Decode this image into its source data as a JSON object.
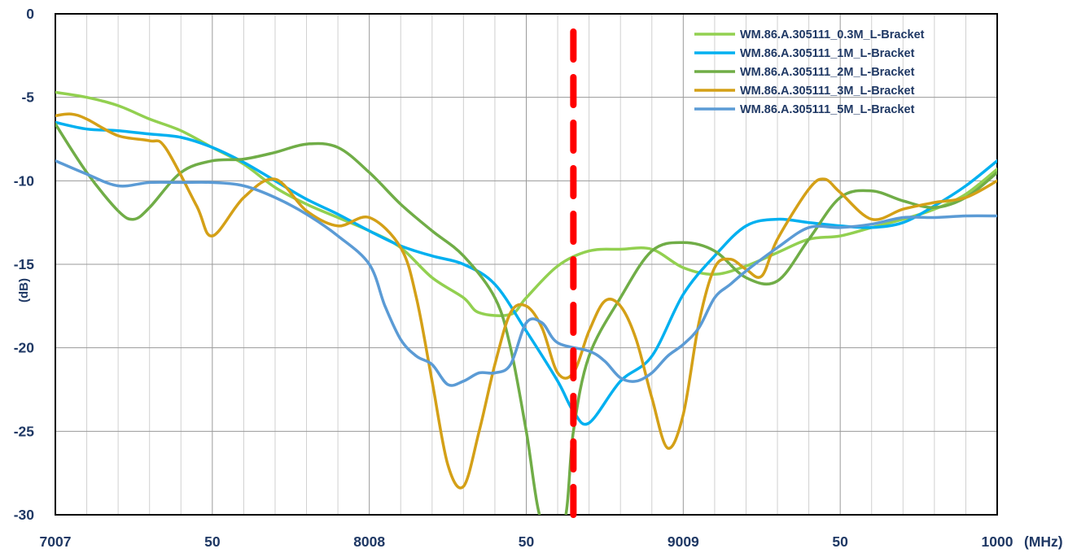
{
  "chart_data": {
    "type": "line",
    "title": "",
    "xlabel": "",
    "ylabel": "(dB)",
    "x_unit_label": "(MHz)",
    "x_tick_labels": [
      "7007",
      "50",
      "8008",
      "50",
      "9009",
      "50",
      "1000"
    ],
    "y_tick_labels": [
      "0",
      "-5",
      "-10",
      "-15",
      "-20",
      "-25",
      "-30"
    ],
    "ylim": [
      -30,
      0
    ],
    "xlim": [
      7000,
      10000
    ],
    "grid": true,
    "legend_position": "top-right",
    "marker_line": {
      "x": 8650,
      "style": "dashed",
      "color": "#ff0000"
    },
    "series": [
      {
        "name": "WM.86.A.305111_0.3M_L-Bracket",
        "color": "#92d050",
        "points": [
          [
            7000,
            -4.7
          ],
          [
            7100,
            -5.0
          ],
          [
            7200,
            -5.5
          ],
          [
            7300,
            -6.3
          ],
          [
            7400,
            -7.0
          ],
          [
            7500,
            -8.0
          ],
          [
            7600,
            -9.0
          ],
          [
            7700,
            -10.4
          ],
          [
            7800,
            -11.4
          ],
          [
            7900,
            -12.2
          ],
          [
            8000,
            -13.0
          ],
          [
            8100,
            -14.0
          ],
          [
            8200,
            -15.8
          ],
          [
            8300,
            -17.0
          ],
          [
            8350,
            -17.9
          ],
          [
            8450,
            -18.0
          ],
          [
            8500,
            -17.0
          ],
          [
            8600,
            -15.1
          ],
          [
            8700,
            -14.2
          ],
          [
            8800,
            -14.1
          ],
          [
            8900,
            -14.1
          ],
          [
            9000,
            -15.2
          ],
          [
            9100,
            -15.6
          ],
          [
            9200,
            -15.1
          ],
          [
            9300,
            -14.3
          ],
          [
            9400,
            -13.5
          ],
          [
            9500,
            -13.3
          ],
          [
            9600,
            -12.8
          ],
          [
            9700,
            -12.3
          ],
          [
            9800,
            -11.7
          ],
          [
            9900,
            -10.8
          ],
          [
            10000,
            -9.3
          ]
        ]
      },
      {
        "name": "WM.86.A.305111_1M_L-Bracket",
        "color": "#00b0f0",
        "points": [
          [
            7000,
            -6.5
          ],
          [
            7100,
            -6.9
          ],
          [
            7200,
            -7.0
          ],
          [
            7300,
            -7.2
          ],
          [
            7400,
            -7.4
          ],
          [
            7500,
            -8.0
          ],
          [
            7600,
            -8.9
          ],
          [
            7700,
            -10.0
          ],
          [
            7800,
            -11.1
          ],
          [
            7900,
            -12.0
          ],
          [
            8000,
            -13.0
          ],
          [
            8100,
            -13.9
          ],
          [
            8200,
            -14.5
          ],
          [
            8300,
            -15.0
          ],
          [
            8400,
            -16.2
          ],
          [
            8500,
            -19.0
          ],
          [
            8600,
            -22.0
          ],
          [
            8650,
            -23.8
          ],
          [
            8700,
            -24.5
          ],
          [
            8800,
            -22.0
          ],
          [
            8900,
            -20.5
          ],
          [
            9000,
            -16.8
          ],
          [
            9100,
            -14.5
          ],
          [
            9200,
            -12.7
          ],
          [
            9300,
            -12.3
          ],
          [
            9400,
            -12.5
          ],
          [
            9500,
            -12.7
          ],
          [
            9600,
            -12.8
          ],
          [
            9700,
            -12.5
          ],
          [
            9800,
            -11.5
          ],
          [
            9900,
            -10.3
          ],
          [
            10000,
            -8.8
          ]
        ]
      },
      {
        "name": "WM.86.A.305111_2M_L-Bracket",
        "color": "#70ad47",
        "points": [
          [
            7000,
            -6.6
          ],
          [
            7100,
            -9.5
          ],
          [
            7200,
            -11.8
          ],
          [
            7250,
            -12.3
          ],
          [
            7300,
            -11.6
          ],
          [
            7400,
            -9.5
          ],
          [
            7500,
            -8.8
          ],
          [
            7600,
            -8.7
          ],
          [
            7700,
            -8.3
          ],
          [
            7800,
            -7.8
          ],
          [
            7900,
            -8.0
          ],
          [
            8000,
            -9.5
          ],
          [
            8100,
            -11.4
          ],
          [
            8200,
            -13.0
          ],
          [
            8300,
            -14.5
          ],
          [
            8400,
            -17.0
          ],
          [
            8450,
            -20.0
          ],
          [
            8500,
            -25.0
          ],
          [
            8550,
            -30.5
          ],
          [
            8620,
            -30.5
          ],
          [
            8650,
            -25.0
          ],
          [
            8700,
            -20.5
          ],
          [
            8800,
            -17.0
          ],
          [
            8900,
            -14.2
          ],
          [
            9000,
            -13.7
          ],
          [
            9100,
            -14.2
          ],
          [
            9200,
            -15.8
          ],
          [
            9300,
            -16.0
          ],
          [
            9400,
            -13.5
          ],
          [
            9500,
            -11.0
          ],
          [
            9600,
            -10.6
          ],
          [
            9700,
            -11.2
          ],
          [
            9800,
            -11.6
          ],
          [
            9900,
            -11.0
          ],
          [
            10000,
            -9.5
          ]
        ]
      },
      {
        "name": "WM.86.A.305111_3M_L-Bracket",
        "color": "#d4a017",
        "points": [
          [
            7000,
            -6.1
          ],
          [
            7050,
            -6.0
          ],
          [
            7100,
            -6.3
          ],
          [
            7200,
            -7.3
          ],
          [
            7300,
            -7.6
          ],
          [
            7350,
            -8.0
          ],
          [
            7450,
            -11.5
          ],
          [
            7500,
            -13.3
          ],
          [
            7600,
            -11.0
          ],
          [
            7700,
            -9.9
          ],
          [
            7800,
            -11.8
          ],
          [
            7900,
            -12.7
          ],
          [
            8000,
            -12.2
          ],
          [
            8100,
            -14.0
          ],
          [
            8150,
            -17.0
          ],
          [
            8200,
            -22.0
          ],
          [
            8250,
            -27.0
          ],
          [
            8300,
            -28.3
          ],
          [
            8350,
            -25.0
          ],
          [
            8400,
            -21.0
          ],
          [
            8450,
            -17.9
          ],
          [
            8500,
            -17.5
          ],
          [
            8550,
            -18.8
          ],
          [
            8600,
            -21.5
          ],
          [
            8650,
            -21.5
          ],
          [
            8700,
            -19.0
          ],
          [
            8750,
            -17.2
          ],
          [
            8800,
            -17.5
          ],
          [
            8850,
            -19.5
          ],
          [
            8900,
            -23.0
          ],
          [
            8950,
            -26.0
          ],
          [
            9000,
            -24.0
          ],
          [
            9050,
            -18.5
          ],
          [
            9100,
            -15.2
          ],
          [
            9150,
            -14.7
          ],
          [
            9200,
            -15.3
          ],
          [
            9250,
            -15.7
          ],
          [
            9300,
            -13.5
          ],
          [
            9400,
            -10.5
          ],
          [
            9450,
            -9.9
          ],
          [
            9500,
            -10.7
          ],
          [
            9600,
            -12.3
          ],
          [
            9700,
            -11.7
          ],
          [
            9800,
            -11.3
          ],
          [
            9900,
            -11.0
          ],
          [
            10000,
            -10.0
          ]
        ]
      },
      {
        "name": "WM.86.A.305111_5M_L-Bracket",
        "color": "#5b9bd5",
        "points": [
          [
            7000,
            -8.8
          ],
          [
            7100,
            -9.6
          ],
          [
            7200,
            -10.3
          ],
          [
            7300,
            -10.1
          ],
          [
            7400,
            -10.1
          ],
          [
            7500,
            -10.1
          ],
          [
            7600,
            -10.3
          ],
          [
            7700,
            -11.0
          ],
          [
            7800,
            -12.0
          ],
          [
            7900,
            -13.3
          ],
          [
            8000,
            -15.0
          ],
          [
            8050,
            -17.5
          ],
          [
            8100,
            -19.5
          ],
          [
            8150,
            -20.5
          ],
          [
            8200,
            -21.0
          ],
          [
            8250,
            -22.2
          ],
          [
            8300,
            -22.0
          ],
          [
            8350,
            -21.5
          ],
          [
            8400,
            -21.5
          ],
          [
            8450,
            -21.0
          ],
          [
            8500,
            -18.5
          ],
          [
            8550,
            -18.5
          ],
          [
            8600,
            -19.7
          ],
          [
            8700,
            -20.2
          ],
          [
            8750,
            -20.8
          ],
          [
            8800,
            -21.8
          ],
          [
            8850,
            -22.0
          ],
          [
            8900,
            -21.5
          ],
          [
            8950,
            -20.5
          ],
          [
            9000,
            -19.8
          ],
          [
            9050,
            -18.8
          ],
          [
            9100,
            -17.0
          ],
          [
            9150,
            -16.2
          ],
          [
            9200,
            -15.4
          ],
          [
            9300,
            -14.0
          ],
          [
            9400,
            -12.8
          ],
          [
            9500,
            -12.8
          ],
          [
            9600,
            -12.6
          ],
          [
            9700,
            -12.2
          ],
          [
            9800,
            -12.2
          ],
          [
            9900,
            -12.1
          ],
          [
            10000,
            -12.1
          ]
        ]
      }
    ]
  }
}
